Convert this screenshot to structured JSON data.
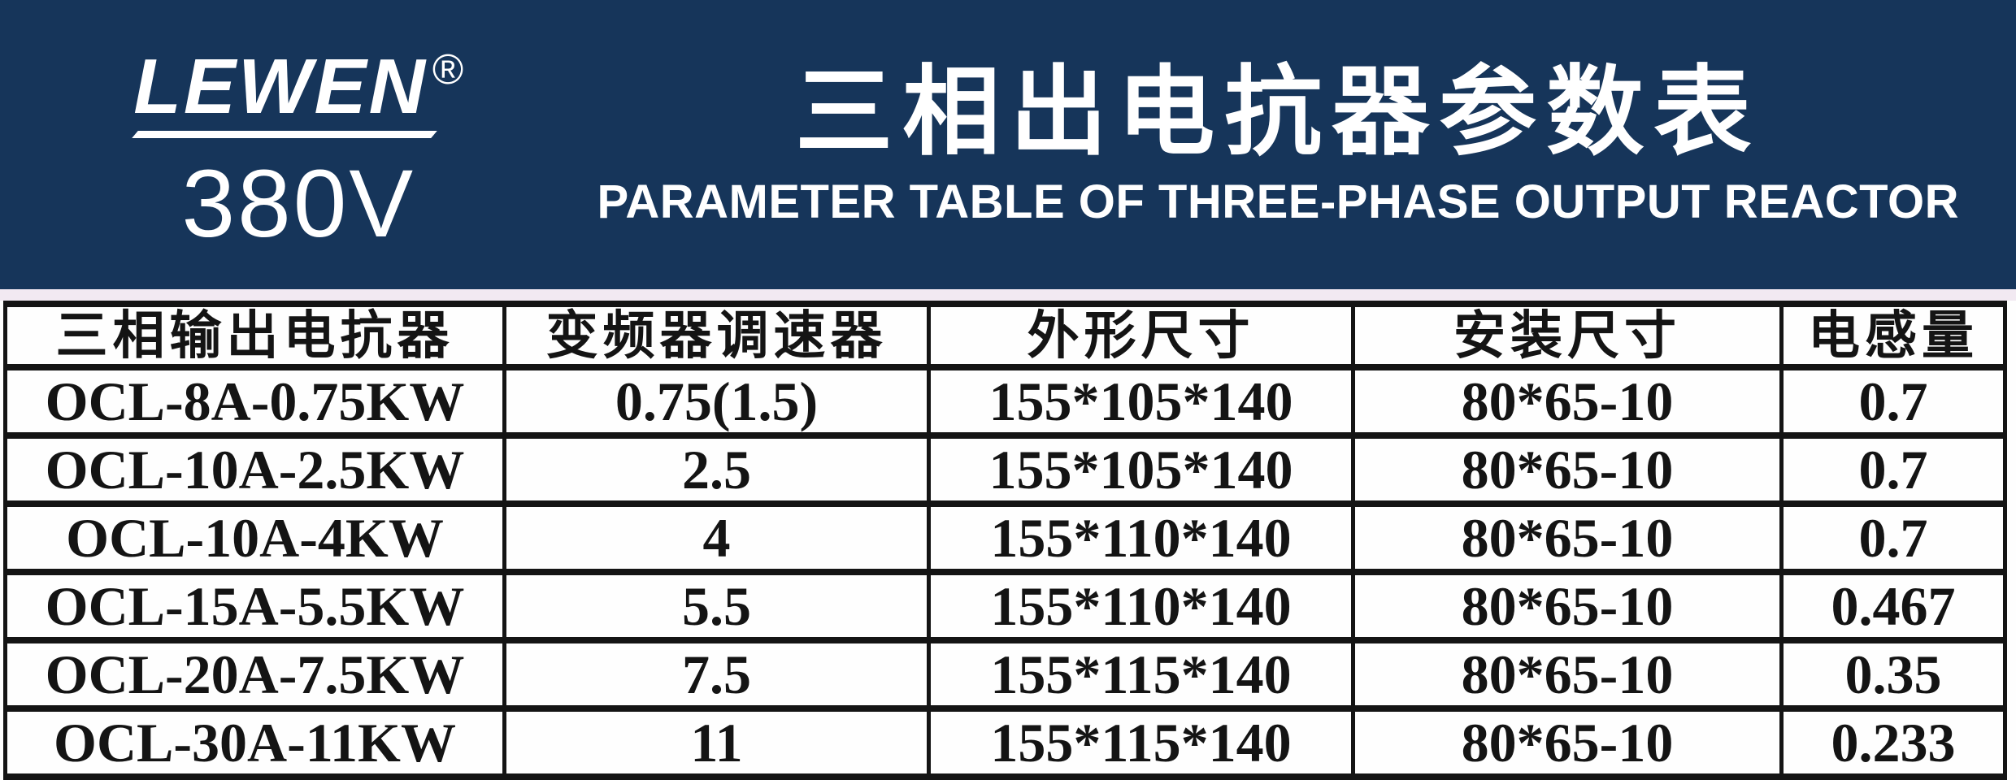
{
  "brand": {
    "name": "LEWEN",
    "registered_mark": "®",
    "voltage": "380V"
  },
  "title": {
    "cn": "三相出电抗器参数表",
    "en": "PARAMETER TABLE OF THREE-PHASE OUTPUT REACTOR"
  },
  "table": {
    "columns": [
      "三相输出电抗器",
      "变频器调速器",
      "外形尺寸",
      "安装尺寸",
      "电感量"
    ],
    "rows": [
      [
        "OCL-8A-0.75KW",
        "0.75(1.5)",
        "155*105*140",
        "80*65-10",
        "0.7"
      ],
      [
        "OCL-10A-2.5KW",
        "2.5",
        "155*105*140",
        "80*65-10",
        "0.7"
      ],
      [
        "OCL-10A-4KW",
        "4",
        "155*110*140",
        "80*65-10",
        "0.7"
      ],
      [
        "OCL-15A-5.5KW",
        "5.5",
        "155*110*140",
        "80*65-10",
        "0.467"
      ],
      [
        "OCL-20A-7.5KW",
        "7.5",
        "155*115*140",
        "80*65-10",
        "0.35"
      ],
      [
        "OCL-30A-11KW",
        "11",
        "155*115*140",
        "80*65-10",
        "0.233"
      ]
    ]
  },
  "colors": {
    "banner_background": "#16355a",
    "banner_text": "#ffffff",
    "first_column_header_text": "#e81414",
    "table_text": "#141414",
    "inductance_value_text": "#191970",
    "divider_strip": "#f2e9f2",
    "table_border": "#141414"
  }
}
